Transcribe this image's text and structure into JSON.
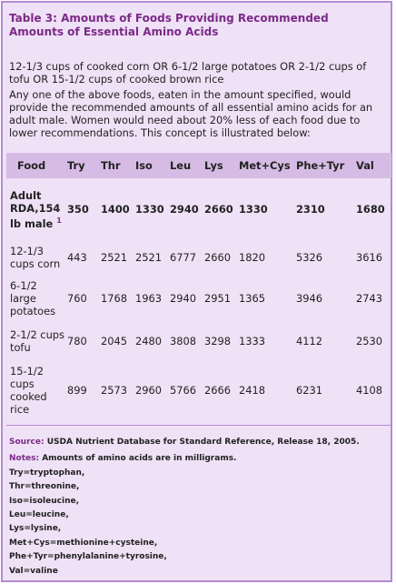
{
  "title": "Table 3: Amounts of Foods Providing Recommended Amounts of Essential Amino Acids",
  "intro": {
    "paragraph1": "12-1/3 cups of cooked corn OR 6-1/2 large potatoes OR 2-1/2 cups of tofu OR 15-1/2 cups of cooked brown rice",
    "paragraph2": "Any one of the above foods, eaten in the amount specified, would provide the recommended amounts of all essential amino acids for an adult male. Women would need about 20% less of each food due to lower recommendations. This concept is illustrated below:"
  },
  "table": {
    "headers": [
      "Food",
      "Try",
      "Thr",
      "Iso",
      "Leu",
      "Lys",
      "Met+Cys",
      "Phe+Tyr",
      "Val"
    ],
    "rda": {
      "label": "Adult RDA,154 lb male",
      "footnote": "1",
      "values": [
        "350",
        "1400",
        "1330",
        "2940",
        "2660",
        "1330",
        "2310",
        "1680"
      ]
    },
    "rows": [
      {
        "food": "12-1/3 cups corn",
        "values": [
          "443",
          "2521",
          "2521",
          "6777",
          "2660",
          "1820",
          "5326",
          "3616"
        ]
      },
      {
        "food": "6-1/2 large potatoes",
        "values": [
          "760",
          "1768",
          "1963",
          "2940",
          "2951",
          "1365",
          "3946",
          "2743"
        ]
      },
      {
        "food": "2-1/2 cups tofu",
        "values": [
          "780",
          "2045",
          "2480",
          "3808",
          "3298",
          "1333",
          "4112",
          "2530"
        ]
      },
      {
        "food": "15-1/2 cups cooked rice",
        "values": [
          "899",
          "2573",
          "2960",
          "5766",
          "2666",
          "2418",
          "6231",
          "4108"
        ]
      }
    ]
  },
  "footer": {
    "source_label": "Source:",
    "source_text": "USDA Nutrient Database for Standard Reference, Release 18, 2005.",
    "notes_label": "Notes:",
    "notes_text": "Amounts of amino acids are in milligrams.",
    "abbreviations": [
      "Try=tryptophan,",
      "Thr=threonine,",
      "Iso=isoleucine,",
      "Leu=leucine,",
      "Lys=lysine,",
      "Met+Cys=methionine+cysteine,",
      "Phe+Tyr=phenylalanine+tyrosine,",
      "Val=valine"
    ]
  },
  "colors": {
    "accent": "#7a2a86",
    "background": "#efe1f6",
    "header_background": "#d6bce4",
    "border": "#b58ad4"
  }
}
